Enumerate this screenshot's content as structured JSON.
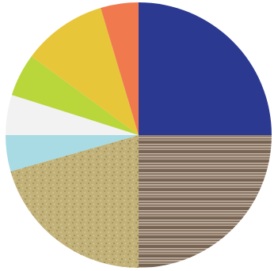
{
  "chart_data": {
    "type": "pie",
    "start_angle_deg": 0,
    "direction": "clockwise",
    "legend": "none",
    "slices": [
      {
        "value": 25.0,
        "color": "#2b3990",
        "fill": "solid"
      },
      {
        "value": 25.0,
        "color": "#9a8574",
        "fill": "wood-grain"
      },
      {
        "value": 20.6,
        "color": "#c2b27a",
        "fill": "sand-texture"
      },
      {
        "value": 4.4,
        "color": "#a8dbe4",
        "fill": "solid"
      },
      {
        "value": 4.9,
        "color": "#f2f2f2",
        "fill": "solid"
      },
      {
        "value": 5.2,
        "color": "#b9d63b",
        "fill": "solid"
      },
      {
        "value": 10.3,
        "color": "#e8c63a",
        "fill": "solid"
      },
      {
        "value": 4.6,
        "color": "#f07a4e",
        "fill": "solid"
      }
    ]
  }
}
